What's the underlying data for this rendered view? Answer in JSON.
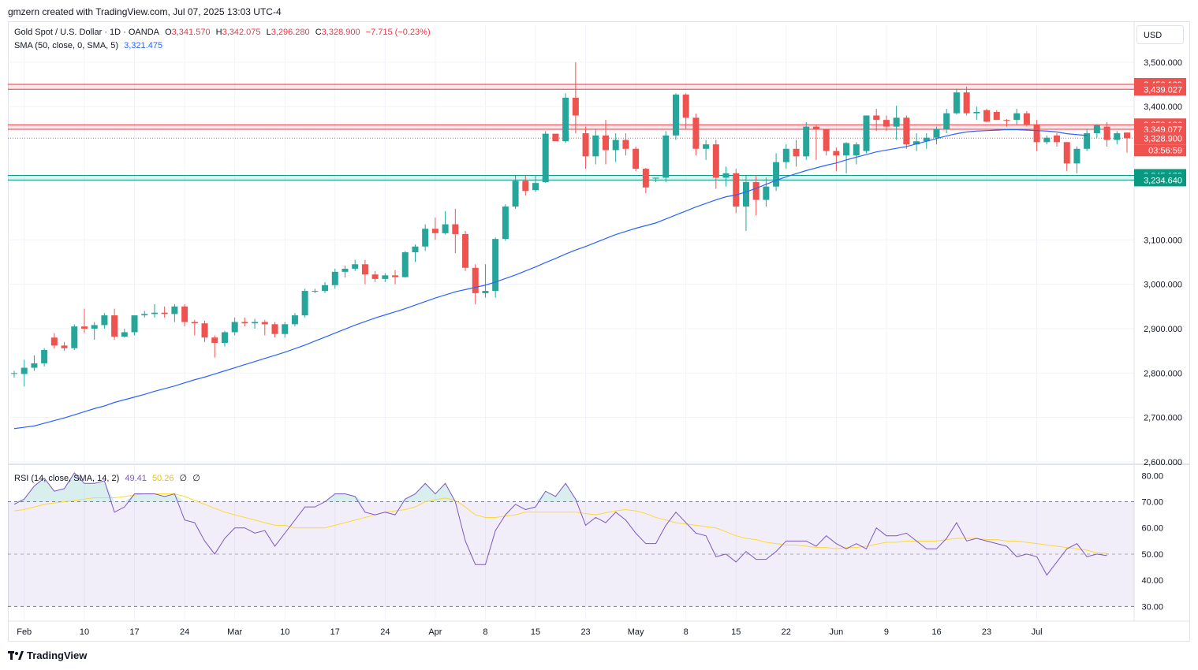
{
  "header": {
    "attribution": "gmzern created with TradingView.com, Jul 07, 2025 13:03 UTC-4"
  },
  "legend": {
    "symbol": "Gold Spot / U.S. Dollar · 1D · OANDA",
    "o_label": "O",
    "o_value": "3,341.570",
    "h_label": "H",
    "h_value": "3,342.075",
    "l_label": "L",
    "l_value": "3,296.280",
    "c_label": "C",
    "c_value": "3,328.900",
    "change": "−7.715 (−0.23%)",
    "sma_label": "SMA (50, close, 0, SMA, 5)",
    "sma_value": "3,321.475",
    "rsi_label": "RSI (14, close, SMA, 14, 2)",
    "rsi_value": "49.41",
    "rsi_sma_value": "50.26",
    "rsi_extra1": "∅",
    "rsi_extra2": "∅"
  },
  "currency_button": "USD",
  "brand": {
    "name": "TradingView",
    "icon": "tradingview-logo-icon"
  },
  "colors": {
    "up": "#26a69a",
    "down": "#ef5350",
    "sma": "#2962ff",
    "rsi": "#7e57c2",
    "rsi_sma": "#fdd835",
    "resistance": "#f23645",
    "support": "#089981"
  },
  "chart_data": [
    {
      "type": "candlestick",
      "title": "Gold Spot / U.S. Dollar · 1D · OANDA",
      "ylim": [
        2600,
        3530
      ],
      "y_ticks": [
        "3,500.000",
        "3,400.000",
        "3,100.000",
        "3,000.000",
        "2,900.000",
        "2,800.000",
        "2,700.000",
        "2,600.000"
      ],
      "x_ticks": [
        {
          "label": "Feb",
          "index": 1
        },
        {
          "label": "10",
          "index": 7
        },
        {
          "label": "17",
          "index": 12
        },
        {
          "label": "24",
          "index": 17
        },
        {
          "label": "Mar",
          "index": 22
        },
        {
          "label": "10",
          "index": 27
        },
        {
          "label": "17",
          "index": 32
        },
        {
          "label": "24",
          "index": 37
        },
        {
          "label": "Apr",
          "index": 42
        },
        {
          "label": "8",
          "index": 47
        },
        {
          "label": "15",
          "index": 52
        },
        {
          "label": "23",
          "index": 57
        },
        {
          "label": "May",
          "index": 62
        },
        {
          "label": "8",
          "index": 67
        },
        {
          "label": "15",
          "index": 72
        },
        {
          "label": "22",
          "index": 77
        },
        {
          "label": "Jun",
          "index": 82
        },
        {
          "label": "9",
          "index": 87
        },
        {
          "label": "16",
          "index": 92
        },
        {
          "label": "23",
          "index": 97
        },
        {
          "label": "Jul",
          "index": 102
        }
      ],
      "price_labels": [
        {
          "value": 3450.109,
          "text": "3,450.109",
          "kind": "resistance"
        },
        {
          "value": 3439.027,
          "text": "3,439.027",
          "kind": "resistance"
        },
        {
          "value": 3359.186,
          "text": "3,359.186",
          "kind": "resistance"
        },
        {
          "value": 3349.077,
          "text": "3,349.077",
          "kind": "resistance"
        },
        {
          "value": 3328.9,
          "text": "3,328.900",
          "kind": "last"
        },
        {
          "value": 3245.13,
          "text": "3,245.130",
          "kind": "support"
        },
        {
          "value": 3234.64,
          "text": "3,234.640",
          "kind": "support"
        }
      ],
      "countdown": "03:56:59",
      "ohlc": [
        [
          2799,
          2805,
          2790,
          2800
        ],
        [
          2798,
          2830,
          2770,
          2812
        ],
        [
          2812,
          2840,
          2805,
          2822
        ],
        [
          2822,
          2856,
          2815,
          2852
        ],
        [
          2880,
          2890,
          2855,
          2862
        ],
        [
          2862,
          2870,
          2850,
          2856
        ],
        [
          2856,
          2910,
          2852,
          2905
        ],
        [
          2905,
          2945,
          2890,
          2900
        ],
        [
          2900,
          2915,
          2875,
          2908
        ],
        [
          2908,
          2935,
          2900,
          2930
        ],
        [
          2930,
          2945,
          2875,
          2882
        ],
        [
          2882,
          2900,
          2880,
          2892
        ],
        [
          2892,
          2930,
          2885,
          2930
        ],
        [
          2930,
          2940,
          2925,
          2933
        ],
        [
          2933,
          2955,
          2925,
          2936
        ],
        [
          2936,
          2950,
          2925,
          2933
        ],
        [
          2933,
          2955,
          2915,
          2950
        ],
        [
          2950,
          2955,
          2905,
          2915
        ],
        [
          2915,
          2920,
          2885,
          2912
        ],
        [
          2912,
          2918,
          2870,
          2880
        ],
        [
          2880,
          2885,
          2835,
          2868
        ],
        [
          2868,
          2895,
          2860,
          2892
        ],
        [
          2892,
          2925,
          2885,
          2915
        ],
        [
          2915,
          2925,
          2905,
          2912
        ],
        [
          2912,
          2922,
          2900,
          2915
        ],
        [
          2915,
          2920,
          2885,
          2910
        ],
        [
          2910,
          2915,
          2880,
          2888
        ],
        [
          2888,
          2915,
          2880,
          2910
        ],
        [
          2910,
          2935,
          2905,
          2930
        ],
        [
          2930,
          2990,
          2925,
          2985
        ],
        [
          2985,
          2990,
          2980,
          2985
        ],
        [
          2985,
          3005,
          2980,
          2998
        ],
        [
          2998,
          3035,
          2990,
          3028
        ],
        [
          3028,
          3042,
          3015,
          3035
        ],
        [
          3035,
          3055,
          3030,
          3045
        ],
        [
          3045,
          3055,
          3000,
          3022
        ],
        [
          3022,
          3030,
          3005,
          3012
        ],
        [
          3012,
          3025,
          3005,
          3020
        ],
        [
          3020,
          3032,
          3000,
          3016
        ],
        [
          3016,
          3075,
          3015,
          3072
        ],
        [
          3072,
          3090,
          3050,
          3085
        ],
        [
          3085,
          3135,
          3075,
          3125
        ],
        [
          3125,
          3150,
          3100,
          3115
        ],
        [
          3115,
          3165,
          3112,
          3135
        ],
        [
          3135,
          3170,
          3070,
          3113
        ],
        [
          3113,
          3120,
          3030,
          3037
        ],
        [
          3037,
          3045,
          2955,
          2980
        ],
        [
          2980,
          3045,
          2970,
          2985
        ],
        [
          2985,
          3105,
          2970,
          3102
        ],
        [
          3102,
          3180,
          3098,
          3175
        ],
        [
          3175,
          3245,
          3170,
          3233
        ],
        [
          3233,
          3245,
          3200,
          3210
        ],
        [
          3212,
          3245,
          3208,
          3228
        ],
        [
          3230,
          3345,
          3228,
          3339
        ],
        [
          3339,
          3330,
          3325,
          3322
        ],
        [
          3322,
          3430,
          3318,
          3420
        ],
        [
          3420,
          3500,
          3340,
          3380
        ],
        [
          3340,
          3355,
          3260,
          3288
        ],
        [
          3288,
          3350,
          3270,
          3335
        ],
        [
          3335,
          3370,
          3270,
          3302
        ],
        [
          3302,
          3340,
          3275,
          3325
        ],
        [
          3325,
          3340,
          3290,
          3305
        ],
        [
          3305,
          3310,
          3255,
          3260
        ],
        [
          3260,
          3262,
          3205,
          3218
        ],
        [
          3238,
          3240,
          3230,
          3240
        ],
        [
          3240,
          3345,
          3230,
          3335
        ],
        [
          3335,
          3430,
          3325,
          3427
        ],
        [
          3427,
          3430,
          3350,
          3375
        ],
        [
          3375,
          3384,
          3290,
          3305
        ],
        [
          3305,
          3325,
          3280,
          3315
        ],
        [
          3315,
          3325,
          3215,
          3240
        ],
        [
          3240,
          3265,
          3220,
          3250
        ],
        [
          3250,
          3260,
          3160,
          3175
        ],
        [
          3175,
          3245,
          3120,
          3230
        ],
        [
          3230,
          3245,
          3155,
          3190
        ],
        [
          3190,
          3240,
          3175,
          3220
        ],
        [
          3220,
          3295,
          3210,
          3275
        ],
        [
          3275,
          3315,
          3260,
          3305
        ],
        [
          3305,
          3325,
          3265,
          3288
        ],
        [
          3288,
          3365,
          3280,
          3355
        ],
        [
          3355,
          3360,
          3280,
          3348
        ],
        [
          3348,
          3350,
          3290,
          3300
        ],
        [
          3300,
          3308,
          3255,
          3290
        ],
        [
          3290,
          3320,
          3250,
          3318
        ],
        [
          3290,
          3320,
          3270,
          3315
        ],
        [
          3300,
          3380,
          3295,
          3380
        ],
        [
          3380,
          3395,
          3345,
          3370
        ],
        [
          3370,
          3380,
          3345,
          3355
        ],
        [
          3355,
          3402,
          3325,
          3375
        ],
        [
          3375,
          3380,
          3305,
          3315
        ],
        [
          3315,
          3340,
          3300,
          3322
        ],
        [
          3322,
          3340,
          3305,
          3330
        ],
        [
          3330,
          3355,
          3315,
          3350
        ],
        [
          3350,
          3395,
          3340,
          3385
        ],
        [
          3385,
          3440,
          3382,
          3432
        ],
        [
          3432,
          3445,
          3380,
          3385
        ],
        [
          3385,
          3400,
          3370,
          3388
        ],
        [
          3392,
          3395,
          3365,
          3366
        ],
        [
          3388,
          3392,
          3370,
          3370
        ],
        [
          3370,
          3372,
          3355,
          3368
        ],
        [
          3370,
          3395,
          3360,
          3385
        ],
        [
          3385,
          3390,
          3355,
          3360
        ],
        [
          3360,
          3370,
          3300,
          3320
        ],
        [
          3320,
          3335,
          3315,
          3330
        ],
        [
          3335,
          3340,
          3310,
          3320
        ],
        [
          3320,
          3320,
          3255,
          3272
        ],
        [
          3272,
          3310,
          3250,
          3305
        ],
        [
          3305,
          3350,
          3300,
          3340
        ],
        [
          3340,
          3360,
          3330,
          3358
        ],
        [
          3355,
          3365,
          3310,
          3325
        ],
        [
          3325,
          3345,
          3315,
          3340
        ],
        [
          3341.57,
          3342.075,
          3296.28,
          3328.9
        ]
      ],
      "sma": [
        2675,
        2678,
        2681,
        2687,
        2693,
        2699,
        2706,
        2713,
        2720,
        2726,
        2734,
        2740,
        2746,
        2752,
        2759,
        2765,
        2771,
        2778,
        2785,
        2791,
        2798,
        2805,
        2812,
        2819,
        2826,
        2833,
        2840,
        2847,
        2855,
        2863,
        2872,
        2881,
        2890,
        2899,
        2908,
        2916,
        2924,
        2931,
        2938,
        2945,
        2953,
        2961,
        2969,
        2976,
        2983,
        2988,
        2993,
        2998,
        3005,
        3013,
        3021,
        3030,
        3039,
        3049,
        3058,
        3068,
        3077,
        3085,
        3094,
        3103,
        3112,
        3119,
        3126,
        3132,
        3138,
        3147,
        3156,
        3165,
        3174,
        3182,
        3190,
        3197,
        3201,
        3208,
        3216,
        3225,
        3234,
        3242,
        3249,
        3256,
        3262,
        3268,
        3273,
        3280,
        3286,
        3292,
        3298,
        3302,
        3306,
        3310,
        3316,
        3322,
        3328,
        3334,
        3339,
        3343,
        3345,
        3346,
        3347,
        3348,
        3348,
        3347,
        3346,
        3345,
        3343,
        3339,
        3337,
        3335
      ]
    },
    {
      "type": "line",
      "title": "RSI (14, close, SMA, 14, 2)",
      "ylim": [
        25,
        84
      ],
      "y_ticks": [
        "80.00",
        "70.00",
        "60.00",
        "50.00",
        "40.00",
        "30.00"
      ],
      "band": [
        30,
        70
      ],
      "midline": 50,
      "series": [
        {
          "name": "RSI",
          "values": [
            69,
            71,
            76,
            79,
            74,
            75,
            81,
            77,
            77,
            78,
            66,
            68,
            73,
            73,
            73,
            72,
            73,
            63,
            62,
            55,
            50,
            56,
            60,
            60,
            58,
            59,
            53,
            58,
            63,
            68,
            68,
            70,
            73,
            73,
            72,
            66,
            65,
            66,
            65,
            71,
            73,
            77,
            73,
            77,
            70,
            55,
            46,
            46,
            59,
            65,
            69,
            67,
            68,
            74,
            72,
            77,
            71,
            61,
            64,
            62,
            66,
            63,
            58,
            54,
            54,
            61,
            66,
            62,
            58,
            57,
            49,
            50,
            47,
            51,
            48,
            48,
            51,
            55,
            55,
            55,
            53,
            57,
            54,
            52,
            54,
            52,
            60,
            57,
            57,
            58,
            55,
            52,
            52,
            56,
            62,
            55,
            56,
            55,
            54,
            53,
            49,
            50,
            49,
            42,
            47,
            52,
            54,
            49,
            50,
            49.41
          ]
        },
        {
          "name": "RSI-based MA",
          "values": [
            66.5,
            67,
            68,
            69,
            69.5,
            70,
            70.5,
            71,
            71.5,
            71.5,
            71.5,
            72,
            72.5,
            73,
            73,
            73,
            73,
            72,
            70.5,
            69,
            67.5,
            66,
            65,
            64,
            63,
            62,
            61,
            61,
            60,
            60,
            60,
            60,
            61,
            62,
            63,
            64,
            65,
            66,
            66.5,
            67,
            68,
            70,
            70.8,
            71.4,
            70.5,
            68,
            65,
            64,
            64,
            64.5,
            65,
            66,
            66,
            66,
            66,
            66,
            66,
            65.5,
            65,
            65.8,
            66.5,
            67,
            66.5,
            65.5,
            64,
            63,
            62,
            61.5,
            61,
            60.5,
            60,
            58.5,
            57,
            56,
            55.5,
            54.5,
            54,
            53.5,
            53.5,
            53,
            52.5,
            52.5,
            52,
            52.5,
            52.5,
            53,
            53.8,
            54.5,
            54.5,
            55,
            55,
            55,
            55,
            55.5,
            56,
            56,
            56,
            55.5,
            55.5,
            55,
            55,
            54.5,
            54,
            53.5,
            53,
            52.5,
            52,
            51.5,
            50.5,
            50.26
          ]
        }
      ]
    }
  ]
}
